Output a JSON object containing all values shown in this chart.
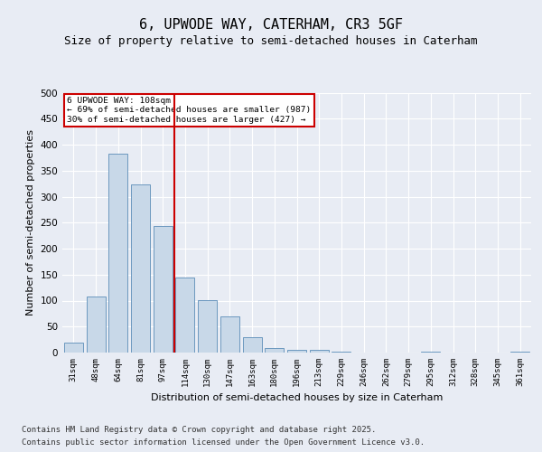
{
  "title": "6, UPWODE WAY, CATERHAM, CR3 5GF",
  "subtitle": "Size of property relative to semi-detached houses in Caterham",
  "xlabel": "Distribution of semi-detached houses by size in Caterham",
  "ylabel": "Number of semi-detached properties",
  "categories": [
    "31sqm",
    "48sqm",
    "64sqm",
    "81sqm",
    "97sqm",
    "114sqm",
    "130sqm",
    "147sqm",
    "163sqm",
    "180sqm",
    "196sqm",
    "213sqm",
    "229sqm",
    "246sqm",
    "262sqm",
    "279sqm",
    "295sqm",
    "312sqm",
    "328sqm",
    "345sqm",
    "361sqm"
  ],
  "values": [
    20,
    107,
    383,
    324,
    243,
    144,
    101,
    69,
    30,
    8,
    5,
    5,
    2,
    0,
    0,
    0,
    1,
    0,
    0,
    0,
    1
  ],
  "bar_color": "#c8d8e8",
  "bar_edge_color": "#5b8db8",
  "property_line_index": 5,
  "property_line_color": "#cc0000",
  "annotation_title": "6 UPWODE WAY: 108sqm",
  "annotation_line1": "← 69% of semi-detached houses are smaller (987)",
  "annotation_line2": "30% of semi-detached houses are larger (427) →",
  "annotation_box_color": "#cc0000",
  "ylim": [
    0,
    500
  ],
  "yticks": [
    0,
    50,
    100,
    150,
    200,
    250,
    300,
    350,
    400,
    450,
    500
  ],
  "footer1": "Contains HM Land Registry data © Crown copyright and database right 2025.",
  "footer2": "Contains public sector information licensed under the Open Government Licence v3.0.",
  "bg_color": "#e8ecf4",
  "plot_bg_color": "#e8ecf4",
  "title_fontsize": 11,
  "subtitle_fontsize": 9,
  "ylabel_fontsize": 8,
  "xlabel_fontsize": 8,
  "tick_fontsize": 6.5,
  "footer_fontsize": 6.5
}
